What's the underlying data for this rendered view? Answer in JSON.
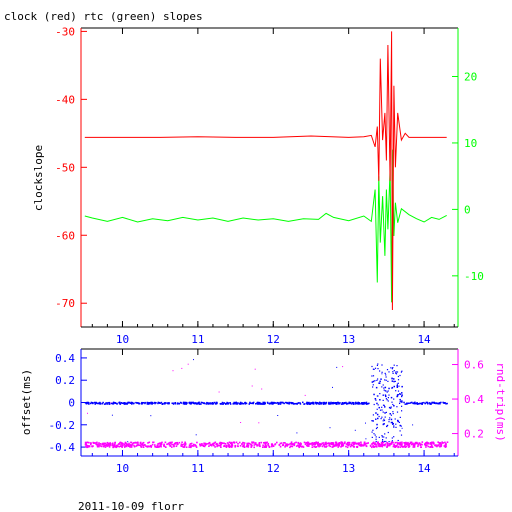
{
  "chart_data": [
    {
      "type": "line",
      "title": "clock (red) rtc (green) slopes",
      "ylabel": "clockslope",
      "xlim": [
        9.45,
        14.45
      ],
      "x_ticks": [
        "10",
        "11",
        "12",
        "13",
        "14"
      ],
      "ylim": [
        -73.5,
        -29.5
      ],
      "y_ticks": [
        "-30",
        "-40",
        "-50",
        "-60",
        "-70"
      ],
      "y2lim": [
        -17.7,
        27.3
      ],
      "y2_ticks": [
        "20",
        "10",
        "0",
        "-10"
      ],
      "grid": false,
      "colors": {
        "left_axis": "#ff0000",
        "right_axis": "#00ff00",
        "bottom_axis": "#000000"
      },
      "series": [
        {
          "color": "#ff0000",
          "axis": "left",
          "x": [
            9.5,
            10.0,
            10.5,
            11.0,
            11.5,
            12.0,
            12.5,
            13.0,
            13.2,
            13.3,
            13.35,
            13.38,
            13.4,
            13.42,
            13.45,
            13.48,
            13.5,
            13.52,
            13.55,
            13.57,
            13.58,
            13.6,
            13.62,
            13.65,
            13.7,
            13.75,
            13.8,
            14.0,
            14.3
          ],
          "values": [
            -45.6,
            -45.6,
            -45.6,
            -45.5,
            -45.6,
            -45.6,
            -45.4,
            -45.6,
            -45.5,
            -45.3,
            -47.0,
            -44.0,
            -52.0,
            -34.0,
            -46.0,
            -42.0,
            -49.0,
            -32.0,
            -52.0,
            -30.0,
            -71.0,
            -38.0,
            -50.0,
            -42.0,
            -46.0,
            -45.0,
            -45.6,
            -45.6,
            -45.6
          ]
        },
        {
          "color": "#00ff00",
          "axis": "right",
          "x": [
            9.5,
            9.6,
            9.8,
            10.0,
            10.2,
            10.4,
            10.6,
            10.8,
            11.0,
            11.2,
            11.4,
            11.6,
            11.8,
            12.0,
            12.2,
            12.4,
            12.6,
            12.7,
            12.8,
            13.0,
            13.2,
            13.3,
            13.35,
            13.38,
            13.4,
            13.42,
            13.45,
            13.48,
            13.5,
            13.52,
            13.55,
            13.57,
            13.58,
            13.6,
            13.62,
            13.65,
            13.7,
            13.8,
            13.9,
            14.0,
            14.1,
            14.2,
            14.3
          ],
          "values": [
            -1.0,
            -1.3,
            -1.8,
            -1.2,
            -1.9,
            -1.4,
            -1.7,
            -1.2,
            -1.6,
            -1.3,
            -1.8,
            -1.3,
            -1.6,
            -1.4,
            -1.8,
            -1.4,
            -1.5,
            -0.6,
            -1.2,
            -1.7,
            -1.0,
            -1.8,
            3.0,
            -11.0,
            5.0,
            -5.0,
            2.0,
            -7.0,
            3.0,
            -3.0,
            6.0,
            -14.0,
            9.0,
            -4.0,
            1.0,
            -2.0,
            0.1,
            -0.8,
            -1.4,
            -1.9,
            -1.2,
            -1.5,
            -0.9
          ]
        }
      ]
    },
    {
      "type": "scatter",
      "xlim": [
        9.45,
        14.45
      ],
      "x_ticks": [
        "10",
        "11",
        "12",
        "13",
        "14"
      ],
      "ylabel": "offset(ms)",
      "ylim": [
        -0.48,
        0.48
      ],
      "y_ticks": [
        "0.4",
        "0.2",
        "0",
        "-0.2",
        "-0.4"
      ],
      "y2label": "rnd-trip(ms)",
      "y2lim": [
        0.07,
        0.69
      ],
      "y2_ticks": [
        "0.6",
        "0.4",
        "0.2"
      ],
      "grid": false,
      "colors": {
        "left_axis": "#0000ff",
        "right_axis": "#ff00ff",
        "bottom_axis": "#0000ff"
      },
      "series": [
        {
          "color": "#0000ff",
          "axis": "left",
          "x_range": [
            9.5,
            14.3
          ],
          "baseline": 0.0,
          "spread": 0.008,
          "burst": {
            "x": [
              13.3,
              13.7
            ],
            "amplitude": 0.22
          }
        },
        {
          "color": "#ff00ff",
          "axis": "right",
          "x_range": [
            9.5,
            14.3
          ],
          "baseline": 0.14,
          "spread": 0.015
        }
      ]
    }
  ],
  "footer": {
    "caption": "2011-10-09 florr"
  }
}
